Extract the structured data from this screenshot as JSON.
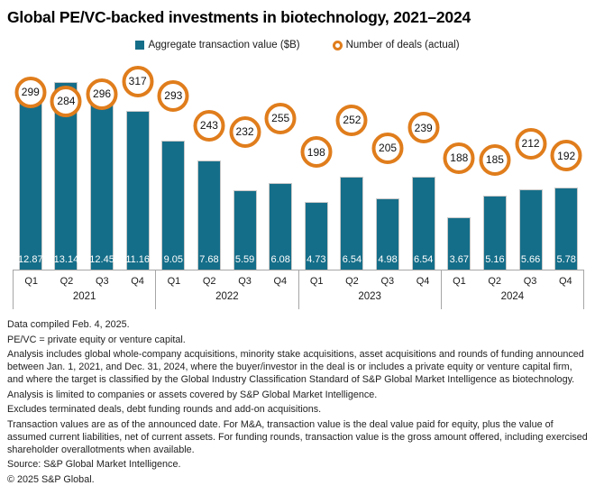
{
  "title": "Global PE/VC-backed investments in biotechnology, 2021–2024",
  "legend": {
    "value_label": "Aggregate transaction value ($B)",
    "deals_label": "Number of deals (actual)"
  },
  "colors": {
    "bar": "#156E89",
    "deal_ring": "#E07D1C",
    "axis_line": "#A6A6A6",
    "bar_value_text": "#FFFFFF"
  },
  "chart_data": {
    "type": "bar",
    "title": "Global PE/VC-backed investments in biotechnology, 2021–2024",
    "years": [
      {
        "year": "2021",
        "quarters": [
          "Q1",
          "Q2",
          "Q3",
          "Q4"
        ]
      },
      {
        "year": "2022",
        "quarters": [
          "Q1",
          "Q2",
          "Q3",
          "Q4"
        ]
      },
      {
        "year": "2023",
        "quarters": [
          "Q1",
          "Q2",
          "Q3",
          "Q4"
        ]
      },
      {
        "year": "2024",
        "quarters": [
          "Q1",
          "Q2",
          "Q3",
          "Q4"
        ]
      }
    ],
    "series": [
      {
        "name": "Aggregate transaction value ($B)",
        "mark": "bar",
        "values": [
          12.87,
          13.14,
          12.45,
          11.16,
          9.05,
          7.68,
          5.59,
          6.08,
          4.73,
          6.54,
          4.98,
          6.54,
          3.67,
          5.16,
          5.66,
          5.78
        ]
      },
      {
        "name": "Number of deals (actual)",
        "mark": "circle-label",
        "values": [
          299,
          284,
          296,
          317,
          293,
          243,
          232,
          255,
          198,
          252,
          205,
          239,
          188,
          185,
          212,
          192
        ]
      }
    ],
    "value_axis_range": [
      0,
      15
    ],
    "deals_axis_range": [
      0,
      360
    ],
    "grid": false,
    "legend_position": "top",
    "value_labels_position": "inside-bar-bottom"
  },
  "footnotes": [
    "Data compiled Feb. 4, 2025.",
    "PE/VC = private equity or venture capital.",
    "Analysis includes global whole-company acquisitions, minority stake acquisitions, asset acquisitions and rounds of funding announced between Jan. 1, 2021, and Dec. 31, 2024, where the buyer/investor in the deal is or includes a private equity or venture capital firm, and where the target is classified by the Global Industry Classification Standard of S&P Global Market Intelligence as biotechnology.",
    "Analysis is limited to companies or assets covered by S&P Global Market Intelligence.",
    "Excludes terminated deals, debt funding rounds and add-on acquisitions.",
    "Transaction values are as of the announced date. For M&A, transaction value is the deal value paid for equity, plus the value of assumed current liabilities, net of current assets. For funding rounds, transaction value is the gross amount offered, including exercised shareholder overallotments when available.",
    "Source: S&P Global Market Intelligence.",
    "© 2025 S&P Global."
  ]
}
